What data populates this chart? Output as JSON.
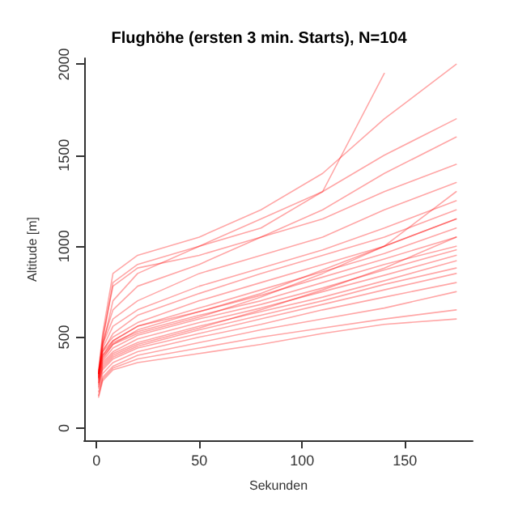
{
  "chart_data": {
    "type": "line",
    "title": "Flughöhe (ersten 3 min. Starts), N=104",
    "xlabel": "Sekunden",
    "ylabel": "Altitude [m]",
    "x": [
      1,
      3,
      8,
      20,
      50,
      80,
      110,
      140,
      175
    ],
    "xlim": [
      -6,
      183
    ],
    "xticks": [
      0,
      50,
      100,
      150
    ],
    "ylim": [
      -67,
      2033
    ],
    "yticks": [
      0,
      500,
      1000,
      1500,
      2000
    ],
    "grid": false,
    "marker": "none",
    "line_style": "solid",
    "series": [
      {
        "color": "#ff0000",
        "values": [
          320,
          520,
          850,
          950,
          1050,
          1200,
          1400,
          1700,
          2000
        ]
      },
      {
        "color": "#ff0000",
        "values": [
          300,
          480,
          800,
          900,
          1000,
          1100,
          1300,
          1950,
          null
        ]
      },
      {
        "color": "#ff0000",
        "values": [
          280,
          450,
          700,
          850,
          1000,
          1150,
          1300,
          1500,
          1700
        ]
      },
      {
        "color": "#ff0000",
        "values": [
          300,
          500,
          780,
          880,
          950,
          1050,
          1200,
          1400,
          1600
        ]
      },
      {
        "color": "#ff0000",
        "values": [
          290,
          470,
          650,
          780,
          900,
          1050,
          1150,
          1300,
          1450
        ]
      },
      {
        "color": "#ff0000",
        "values": [
          310,
          460,
          600,
          700,
          850,
          950,
          1050,
          1200,
          1350
        ]
      },
      {
        "color": "#ff0000",
        "values": [
          300,
          440,
          560,
          650,
          780,
          880,
          980,
          1100,
          1250
        ]
      },
      {
        "color": "#ff0000",
        "values": [
          280,
          420,
          520,
          620,
          740,
          850,
          950,
          1050,
          1200
        ]
      },
      {
        "color": "#ff0000",
        "values": [
          300,
          430,
          500,
          580,
          700,
          800,
          900,
          1000,
          1150
        ]
      },
      {
        "color": "#ff0000",
        "values": [
          290,
          400,
          480,
          560,
          660,
          760,
          860,
          960,
          1100
        ]
      },
      {
        "color": "#ff0000",
        "values": [
          270,
          380,
          460,
          540,
          640,
          730,
          830,
          930,
          1050
        ]
      },
      {
        "color": "#ff0000",
        "values": [
          300,
          400,
          470,
          530,
          620,
          700,
          800,
          900,
          1000
        ]
      },
      {
        "color": "#ff0000",
        "values": [
          280,
          370,
          440,
          510,
          600,
          680,
          770,
          870,
          980
        ]
      },
      {
        "color": "#ff0000",
        "values": [
          260,
          360,
          420,
          490,
          580,
          660,
          750,
          840,
          950
        ]
      },
      {
        "color": "#ff0000",
        "values": [
          250,
          350,
          410,
          470,
          560,
          640,
          720,
          810,
          920
        ]
      },
      {
        "color": "#ff0000",
        "values": [
          240,
          330,
          390,
          450,
          540,
          620,
          700,
          790,
          880
        ]
      },
      {
        "color": "#ff0000",
        "values": [
          230,
          320,
          380,
          440,
          520,
          600,
          680,
          760,
          850
        ]
      },
      {
        "color": "#ff0000",
        "values": [
          220,
          300,
          360,
          420,
          500,
          570,
          650,
          720,
          800
        ]
      },
      {
        "color": "#ff0000",
        "values": [
          200,
          280,
          340,
          400,
          470,
          540,
          600,
          660,
          750
        ]
      },
      {
        "color": "#ff0000",
        "values": [
          180,
          270,
          330,
          380,
          440,
          500,
          550,
          600,
          650
        ]
      },
      {
        "color": "#ff0000",
        "values": [
          170,
          260,
          320,
          360,
          410,
          460,
          520,
          570,
          600
        ]
      },
      {
        "color": "#ff0000",
        "values": [
          250,
          340,
          400,
          460,
          550,
          650,
          760,
          880,
          1050
        ]
      },
      {
        "color": "#ff0000",
        "values": [
          270,
          390,
          460,
          520,
          610,
          720,
          850,
          1000,
          1150
        ]
      },
      {
        "color": "#ff0000",
        "values": [
          300,
          420,
          480,
          560,
          640,
          740,
          870,
          1000,
          1300
        ]
      }
    ]
  }
}
